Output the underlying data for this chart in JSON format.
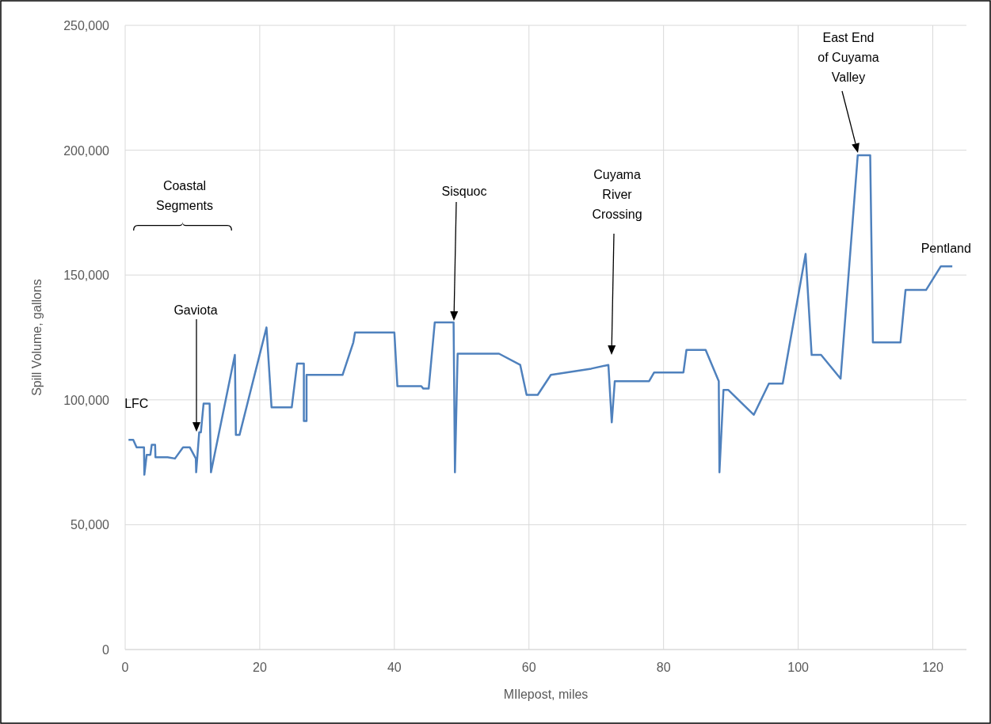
{
  "chart_data": {
    "type": "line",
    "xlabel": "MIlepost, miles",
    "ylabel": "Spill Volume, gallons",
    "xlim": [
      0,
      125
    ],
    "ylim": [
      0,
      250000
    ],
    "xticks": [
      0,
      20,
      40,
      60,
      80,
      100,
      120
    ],
    "yticks": [
      0,
      {
        "value": 50000,
        "label": "50,000"
      },
      {
        "value": 100000,
        "label": "100,000"
      },
      {
        "value": 150000,
        "label": "150,000"
      },
      {
        "value": 200000,
        "label": "200,000"
      },
      {
        "value": 250000,
        "label": "250,000"
      }
    ],
    "grid": true,
    "marker": "none",
    "line_style": "solid",
    "series": [
      {
        "color": "#4f81bd",
        "x": [
          0.5,
          1.2,
          1.7,
          2.8,
          2.85,
          3.2,
          3.75,
          3.95,
          4.45,
          4.5,
          6.3,
          7.4,
          8.6,
          9.6,
          10.5,
          10.55,
          11.0,
          11.25,
          11.65,
          12.55,
          12.75,
          16.3,
          16.45,
          17.0,
          21.0,
          21.75,
          24.75,
          25.55,
          26.55,
          26.55,
          26.95,
          26.95,
          32.3,
          33.9,
          34.15,
          40.0,
          40.45,
          44.0,
          44.3,
          45.1,
          46.0,
          48.8,
          49.0,
          49.4,
          55.55,
          58.7,
          59.65,
          61.3,
          63.25,
          69.25,
          71.8,
          72.3,
          72.75,
          77.85,
          78.6,
          82.95,
          83.4,
          86.25,
          88.2,
          88.3,
          88.9,
          89.6,
          93.4,
          95.65,
          97.7,
          101.1,
          102.0,
          103.4,
          106.3,
          108.85,
          110.7,
          111.1,
          115.2,
          115.95,
          119.0,
          121.2,
          122.9
        ],
        "values": [
          84000,
          84000,
          81000,
          81000,
          70000,
          78000,
          78000,
          82000,
          82000,
          77000,
          77000,
          76500,
          81000,
          81000,
          76500,
          71000,
          87000,
          87000,
          98500,
          98500,
          71000,
          118000,
          86000,
          86000,
          129000,
          97000,
          97000,
          114500,
          114500,
          91500,
          91500,
          110000,
          110000,
          123000,
          127000,
          127000,
          105500,
          105500,
          104500,
          104500,
          131000,
          131000,
          71000,
          118500,
          118500,
          114000,
          102000,
          102000,
          110000,
          112500,
          114000,
          91000,
          107500,
          107500,
          111000,
          111000,
          120000,
          120000,
          107500,
          71000,
          104000,
          104000,
          94000,
          106500,
          106500,
          158500,
          118000,
          118000,
          108500,
          198000,
          198000,
          123000,
          123000,
          144000,
          144000,
          153500,
          153500
        ]
      }
    ],
    "annotations": [
      {
        "text": "LFC",
        "x": 0.5,
        "y": 84000
      },
      "Gaviota",
      "Coastal\nSegments",
      "Sisquoc",
      "Cuyama\nRiver\nCrossing",
      "East End\nof Cuyama\nValley",
      {
        "text": "Pentland",
        "x": 121.5,
        "y": 154000
      }
    ]
  }
}
